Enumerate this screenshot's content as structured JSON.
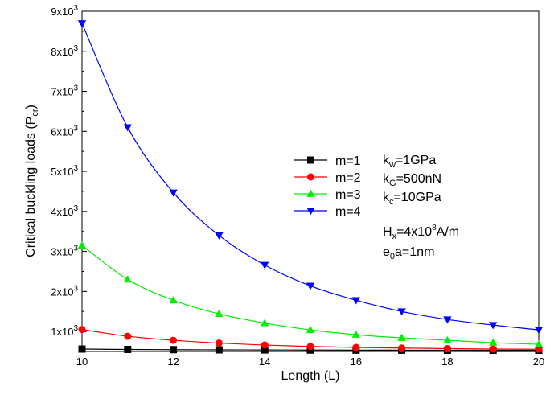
{
  "chart_data": {
    "type": "line",
    "xlabel": "Length (L)",
    "ylabel": {
      "main": "Critical buckling loads (P",
      "sub": "cr",
      "close": ")"
    },
    "xlim": [
      10,
      20
    ],
    "ylim": [
      500,
      9000
    ],
    "x_ticks": [
      10,
      12,
      14,
      16,
      18,
      20
    ],
    "x_minor_ticks": [
      11,
      13,
      15,
      17,
      19
    ],
    "y_ticks": [
      {
        "value": 1000,
        "base": "1x10",
        "exp": "3"
      },
      {
        "value": 2000,
        "base": "2x10",
        "exp": "3"
      },
      {
        "value": 3000,
        "base": "3x10",
        "exp": "3"
      },
      {
        "value": 4000,
        "base": "4x10",
        "exp": "3"
      },
      {
        "value": 5000,
        "base": "5x10",
        "exp": "3"
      },
      {
        "value": 6000,
        "base": "6x10",
        "exp": "3"
      },
      {
        "value": 7000,
        "base": "7x10",
        "exp": "3"
      },
      {
        "value": 8000,
        "base": "8x10",
        "exp": "3"
      },
      {
        "value": 9000,
        "base": "9x10",
        "exp": "3"
      }
    ],
    "grid": false,
    "legend_position": "center-right",
    "x": [
      10,
      11,
      12,
      13,
      14,
      15,
      16,
      17,
      18,
      19,
      20
    ],
    "series": [
      {
        "name": "m=1",
        "color": "#000000",
        "marker": "square",
        "values": [
          560,
          550,
          545,
          540,
          538,
          535,
          533,
          532,
          531,
          530,
          530
        ]
      },
      {
        "name": "m=2",
        "color": "#ff0000",
        "marker": "circle",
        "values": [
          1050,
          880,
          780,
          710,
          660,
          625,
          600,
          585,
          570,
          560,
          555
        ]
      },
      {
        "name": "m=3",
        "color": "#00ee00",
        "marker": "triangle-up",
        "values": [
          3150,
          2300,
          1780,
          1440,
          1210,
          1040,
          920,
          840,
          780,
          720,
          680
        ]
      },
      {
        "name": "m=4",
        "color": "#0000ff",
        "marker": "triangle-down",
        "values": [
          8700,
          6100,
          4470,
          3400,
          2660,
          2140,
          1780,
          1500,
          1300,
          1160,
          1040
        ]
      }
    ],
    "annotations": [
      {
        "base": "k",
        "sub": "w",
        "rest": "=1GPa"
      },
      {
        "base": "k",
        "sub": "G",
        "rest": "=500nN"
      },
      {
        "base": "k",
        "sub": "c",
        "rest": "=10GPa"
      },
      {
        "base": "H",
        "sub": "x",
        "rest1": "=4x10",
        "sup": "8",
        "rest2": "A/m"
      },
      {
        "base": "e",
        "sub": "0",
        "rest": "a=1nm"
      }
    ]
  }
}
